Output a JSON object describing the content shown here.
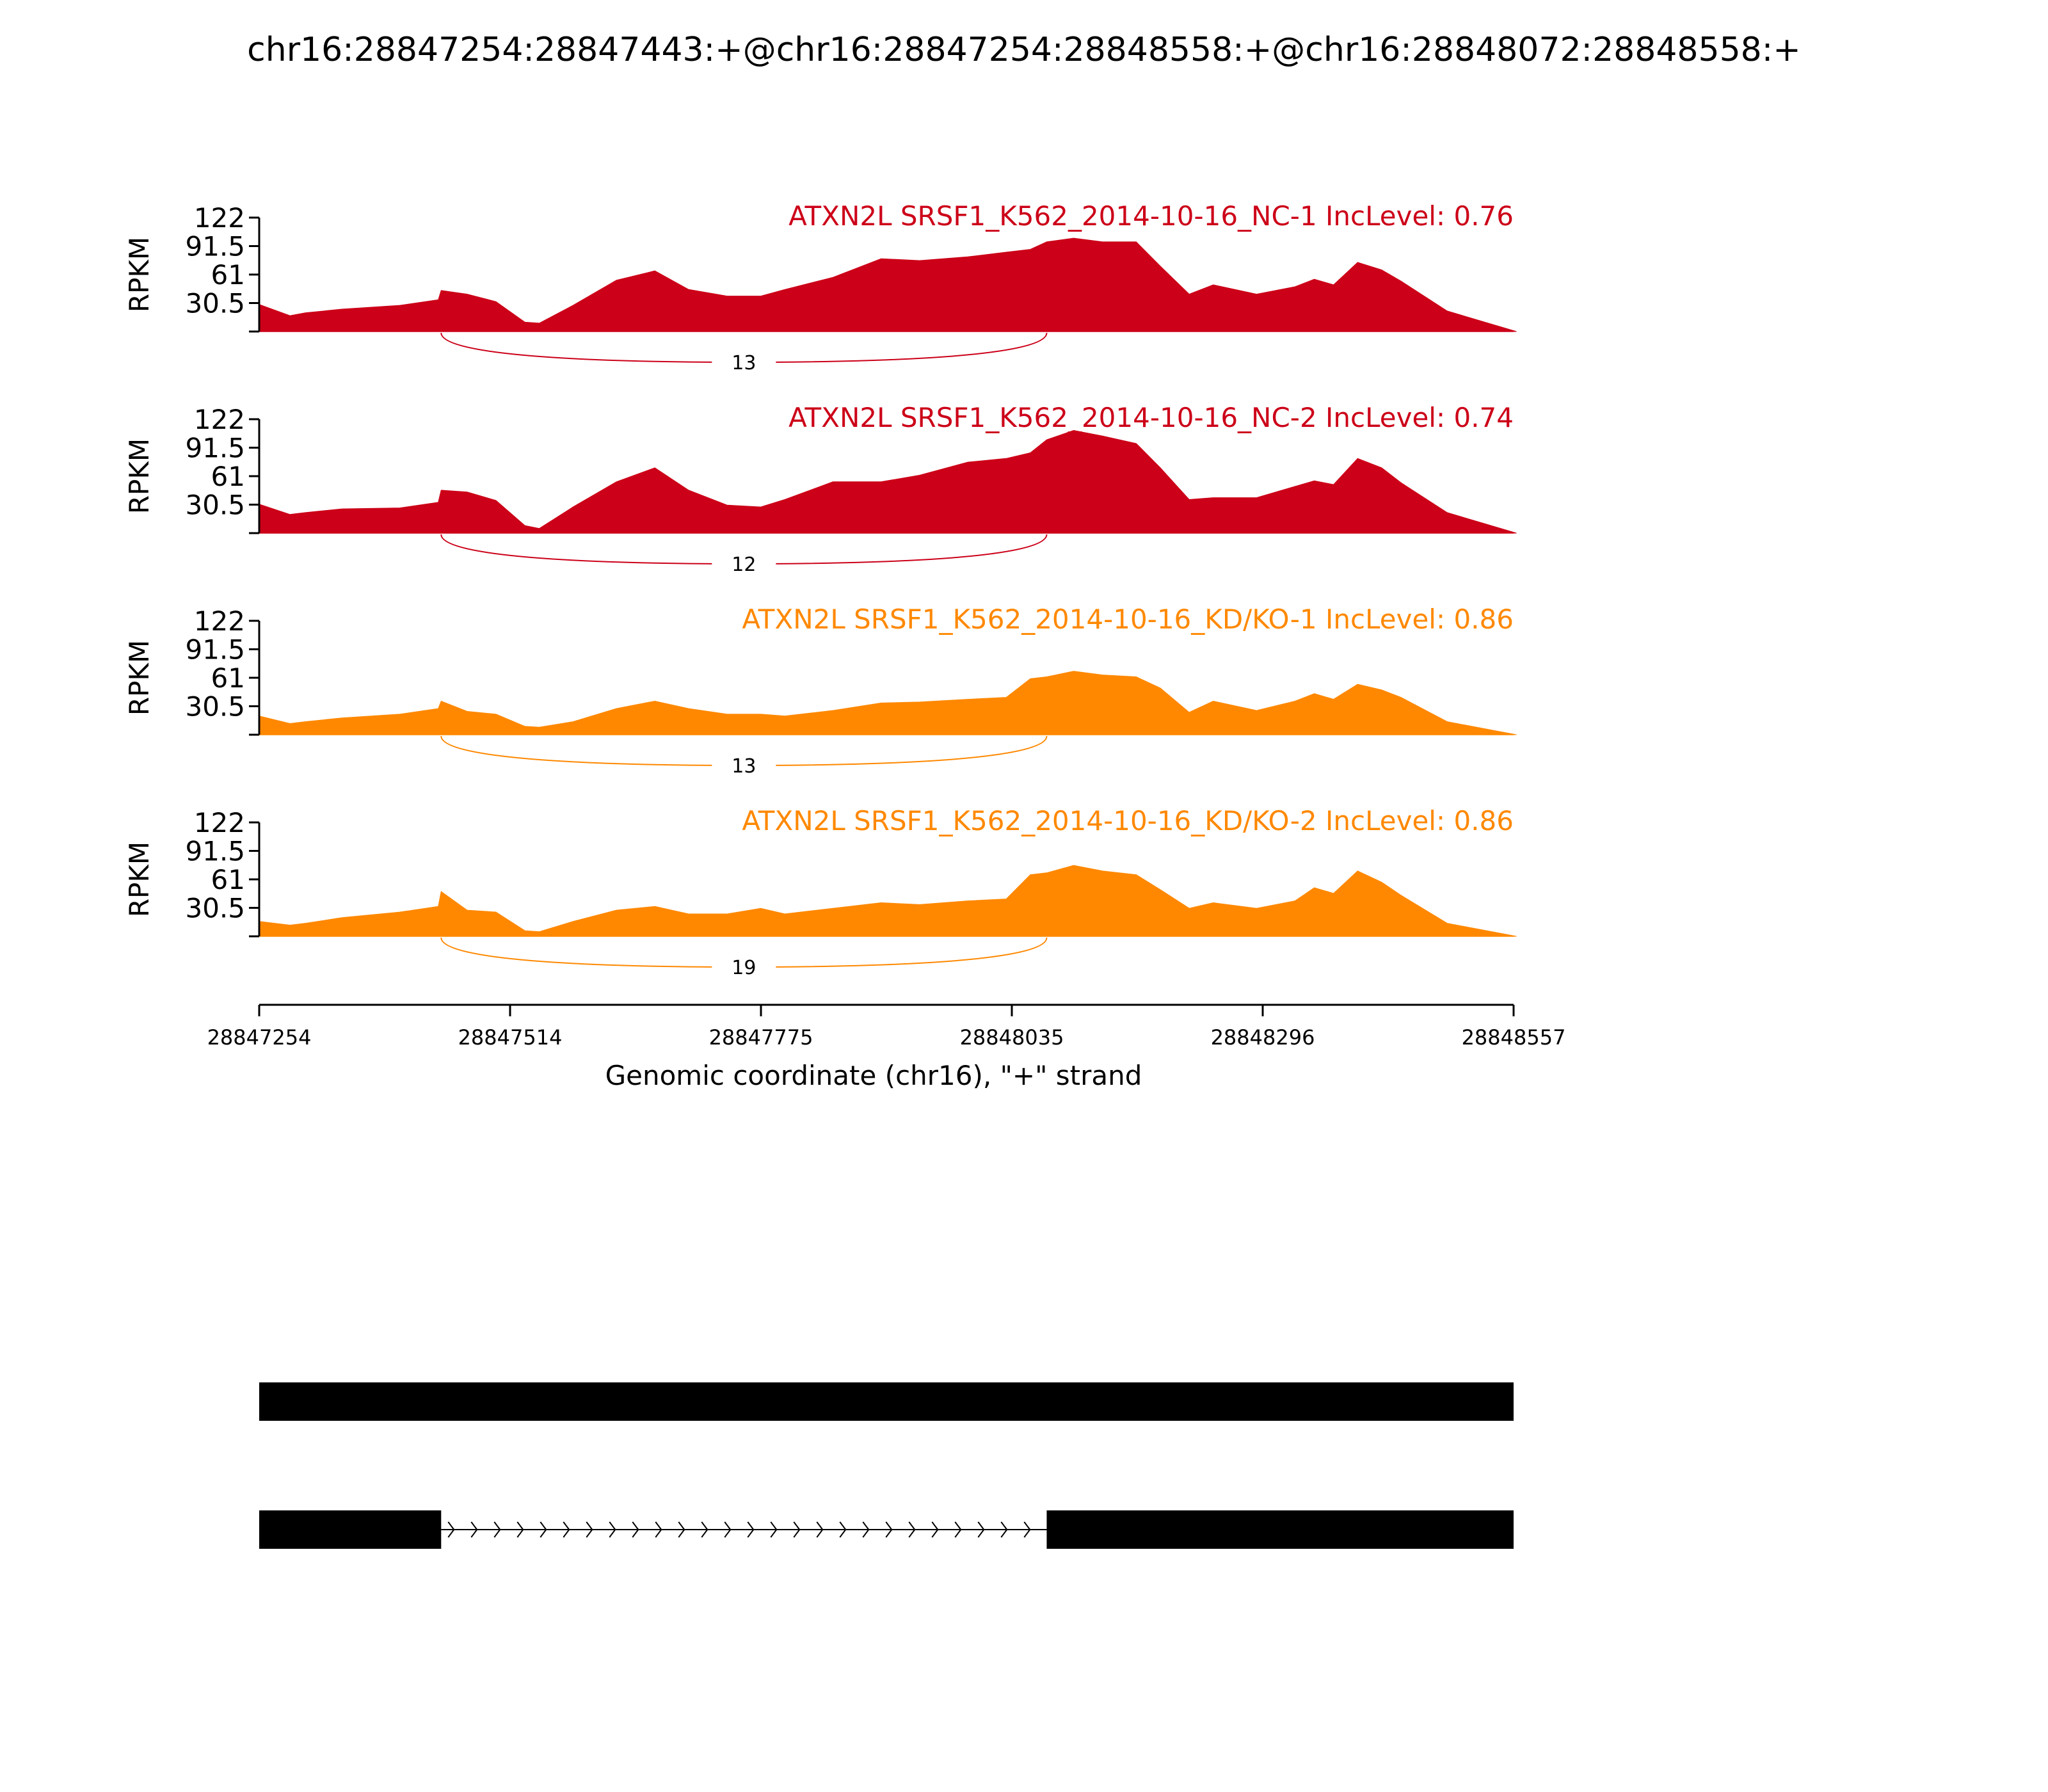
{
  "title": "chr16:28847254:28847443:+@chr16:28847254:28848558:+@chr16:28848072:28848558:+",
  "colors": {
    "nc": "#cc0018",
    "kd": "#ff8800",
    "axis": "#000000",
    "model": "#000000"
  },
  "chart_data": {
    "type": "area",
    "ylabel": "RPKM",
    "ylim": [
      0,
      122
    ],
    "yticks": [
      "122",
      "91.5",
      "61",
      "30.5"
    ],
    "xlim": [
      28847254,
      28848557
    ],
    "xticks": [
      "28847254",
      "28847514",
      "28847775",
      "28848035",
      "28848296",
      "28848557"
    ],
    "xlabel": "Genomic coordinate (chr16), \"+\" strand",
    "x": [
      28847254,
      28847286,
      28847302,
      28847340,
      28847400,
      28847440,
      28847443,
      28847470,
      28847500,
      28847530,
      28847545,
      28847580,
      28847625,
      28847665,
      28847700,
      28847740,
      28847775,
      28847800,
      28847850,
      28847900,
      28847940,
      28847990,
      28848030,
      28848055,
      28848072,
      28848100,
      28848130,
      28848165,
      28848190,
      28848220,
      28848245,
      28848290,
      28848330,
      28848350,
      28848370,
      28848395,
      28848420,
      28848440,
      28848488,
      28848560
    ],
    "series": [
      {
        "name": "ATXN2L SRSF1_K562_2014-10-16_NC-1 IncLevel: 0.76",
        "values": [
          29,
          17,
          20,
          24,
          28,
          34,
          44,
          40,
          32,
          10,
          9,
          28,
          55,
          65,
          45,
          38,
          38,
          45,
          58,
          78,
          76,
          80,
          85,
          88,
          96,
          100,
          96,
          96,
          70,
          40,
          50,
          40,
          48,
          56,
          50,
          74,
          66,
          54,
          22,
          0
        ],
        "junction": {
          "label": "13",
          "start": 28847443,
          "end": 28848072
        }
      },
      {
        "name": "ATXN2L SRSF1_K562_2014-10-16_NC-2 IncLevel: 0.74",
        "values": [
          31,
          20,
          22,
          26,
          27,
          33,
          46,
          44,
          35,
          8,
          5,
          28,
          55,
          70,
          46,
          30,
          28,
          36,
          55,
          55,
          62,
          76,
          80,
          86,
          100,
          110,
          104,
          96,
          70,
          36,
          38,
          38,
          50,
          56,
          52,
          80,
          70,
          54,
          22,
          0
        ],
        "junction": {
          "label": "12",
          "start": 28847443,
          "end": 28848072
        }
      },
      {
        "name": "ATXN2L SRSF1_K562_2014-10-16_KD/KO-1 IncLevel: 0.86",
        "values": [
          20,
          12,
          14,
          18,
          22,
          28,
          36,
          25,
          22,
          9,
          8,
          14,
          28,
          36,
          28,
          22,
          22,
          20,
          26,
          34,
          35,
          38,
          40,
          60,
          62,
          68,
          64,
          62,
          50,
          24,
          36,
          26,
          36,
          44,
          38,
          54,
          48,
          40,
          14,
          0
        ],
        "junction": {
          "label": "13",
          "start": 28847443,
          "end": 28848072
        }
      },
      {
        "name": "ATXN2L SRSF1_K562_2014-10-16_KD/KO-2 IncLevel: 0.86",
        "values": [
          16,
          12,
          14,
          20,
          26,
          32,
          48,
          28,
          26,
          6,
          5,
          16,
          28,
          32,
          24,
          24,
          30,
          24,
          30,
          36,
          34,
          38,
          40,
          66,
          68,
          76,
          70,
          66,
          50,
          30,
          36,
          30,
          38,
          52,
          46,
          70,
          58,
          44,
          14,
          0
        ],
        "junction": {
          "label": "19",
          "start": 28847443,
          "end": 28848072
        }
      }
    ]
  },
  "gene_model": {
    "isoforms": [
      {
        "exons": [
          [
            28847254,
            28848558
          ]
        ]
      },
      {
        "exons": [
          [
            28847254,
            28847443
          ],
          [
            28848072,
            28848558
          ]
        ]
      }
    ]
  }
}
